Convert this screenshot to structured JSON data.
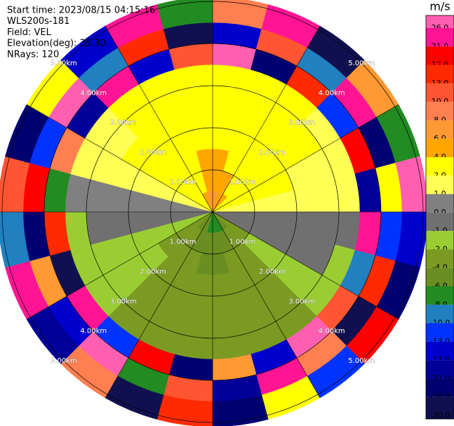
{
  "chart_data": {
    "type": "ppi",
    "info": [
      "Start time: 2023/08/15 04:15:16",
      "WLS200s-181",
      "Field: VEL",
      "Elevation(deg): 35.30",
      "NRays: 120"
    ],
    "rlim": [
      0,
      5.1
    ],
    "range_rings": [
      {
        "value": 1,
        "label": "1.00km"
      },
      {
        "value": 2,
        "label": "2.00km"
      },
      {
        "value": 3,
        "label": "3.00km"
      },
      {
        "value": 4,
        "label": "4.00km"
      },
      {
        "value": 5,
        "label": "5.00km"
      }
    ],
    "gates": [
      0,
      0.5,
      1,
      1.5,
      2,
      2.5,
      3,
      3.5,
      4,
      4.5,
      5.1
    ],
    "azimuths": [
      0,
      15,
      30,
      45,
      60,
      75,
      90,
      105,
      120,
      135,
      150,
      165,
      180,
      195,
      210,
      225,
      240,
      255,
      270,
      285,
      300,
      315,
      330,
      345,
      360
    ],
    "values": [
      [
        6,
        5,
        4,
        3,
        3,
        2.5,
        2,
        28,
        -15,
        9
      ],
      [
        5,
        4,
        3,
        3,
        2.5,
        2.5,
        2,
        -23,
        11,
        24
      ],
      [
        4,
        3,
        3,
        2.5,
        2.5,
        2,
        2,
        15,
        -9,
        -28
      ],
      [
        3,
        2.5,
        2.5,
        2.5,
        2,
        2,
        1.5,
        -11,
        23,
        7
      ],
      [
        2.5,
        2.5,
        2,
        2,
        1.5,
        1.5,
        1.5,
        19,
        -24,
        -7
      ],
      [
        1.5,
        1.5,
        1.5,
        1.5,
        1.5,
        1.5,
        1.5,
        -19,
        3,
        28
      ],
      [
        -0.5,
        -0.5,
        -0.5,
        -0.5,
        -0.5,
        -0.5,
        -0.5,
        24,
        -11,
        -15
      ],
      [
        -0.5,
        -0.5,
        -0.5,
        -0.5,
        -0.5,
        -0.5,
        -1.5,
        -9,
        15,
        -23
      ],
      [
        -3,
        -2.5,
        -1.5,
        -1.5,
        -1.5,
        -1.5,
        -1.5,
        11,
        -28,
        19
      ],
      [
        -5,
        -3,
        -3,
        -2.5,
        -2.5,
        -2.5,
        -3,
        28,
        9,
        -11
      ],
      [
        -7,
        -5,
        -3,
        -3,
        -3,
        -3,
        -3,
        -15,
        24,
        3
      ],
      [
        -7,
        -5,
        -4.5,
        -3,
        -3,
        -3,
        -3,
        7,
        -19,
        -24
      ],
      [
        -7,
        -5,
        -4.5,
        -3,
        -3,
        -3,
        -3,
        -24,
        11,
        15
      ],
      [
        -5,
        -4.5,
        -3,
        -3,
        -3,
        -3,
        -3,
        19,
        -7,
        -28
      ],
      [
        -4.5,
        -3,
        -3,
        -2.5,
        -2.5,
        -3,
        -3,
        -11,
        28,
        9
      ],
      [
        -3,
        -2.5,
        -2.5,
        -1.5,
        -1.5,
        -1.5,
        -1.5,
        23,
        -15,
        -19
      ],
      [
        -1.5,
        -1.5,
        -1.5,
        -1.5,
        -1.5,
        -1.5,
        -1.5,
        -28,
        7,
        24
      ],
      [
        -0.5,
        -0.5,
        -0.5,
        -0.5,
        -0.5,
        -0.5,
        -1.5,
        15,
        -23,
        -9
      ],
      [
        0.5,
        0.5,
        0.5,
        0.5,
        0.5,
        0.5,
        0.5,
        -7,
        19,
        11
      ],
      [
        1.5,
        1.5,
        1.5,
        1.5,
        1.5,
        1.5,
        1.5,
        9,
        -11,
        -24
      ],
      [
        2.5,
        2.5,
        2.5,
        2,
        2,
        1.5,
        1.5,
        -19,
        28,
        3
      ],
      [
        3,
        3,
        2.5,
        2.5,
        2.5,
        2,
        2,
        24,
        -9,
        -15
      ],
      [
        4,
        3,
        3,
        3,
        2.5,
        2.5,
        2,
        -15,
        15,
        23
      ],
      [
        6,
        5,
        4,
        3,
        3,
        2.5,
        2,
        11,
        -28,
        -7
      ]
    ],
    "colorbar": {
      "label": "m/s",
      "ticks": [
        {
          "value": 26,
          "label": "26.0"
        },
        {
          "value": 21,
          "label": "21.0"
        },
        {
          "value": 17,
          "label": "17.0"
        },
        {
          "value": 13,
          "label": "13.0"
        },
        {
          "value": 10,
          "label": "10.0"
        },
        {
          "value": 8,
          "label": "8.0"
        },
        {
          "value": 6,
          "label": "6.0"
        },
        {
          "value": 4,
          "label": "4.0"
        },
        {
          "value": 2,
          "label": "2.0"
        },
        {
          "value": 1,
          "label": "1.0"
        },
        {
          "value": 0,
          "label": "0.0"
        },
        {
          "value": -1,
          "label": "-1.0"
        },
        {
          "value": -2,
          "label": "-2.0"
        },
        {
          "value": -4,
          "label": "-4.0"
        },
        {
          "value": -6,
          "label": "-6.0"
        },
        {
          "value": -8,
          "label": "-8.0"
        },
        {
          "value": -10,
          "label": "-10.0"
        },
        {
          "value": -13,
          "label": "-13.0"
        },
        {
          "value": -17,
          "label": "-17.0"
        },
        {
          "value": -21,
          "label": "-21.0"
        },
        {
          "value": -26,
          "label": "-26.0"
        },
        {
          "value": -30,
          "label": "-30.0"
        }
      ],
      "colors": [
        "#ff5fb0",
        "#ff1493",
        "#ff0000",
        "#ff2a00",
        "#ff5533",
        "#ff7f50",
        "#ff9933",
        "#ffa500",
        "#ffff00",
        "#ffff55",
        "#808080",
        "#707070",
        "#9acd32",
        "#7a9a22",
        "#6b8e23",
        "#228b22",
        "#2080c0",
        "#0033ff",
        "#0000cc",
        "#000099",
        "#000070",
        "#101050"
      ]
    }
  }
}
